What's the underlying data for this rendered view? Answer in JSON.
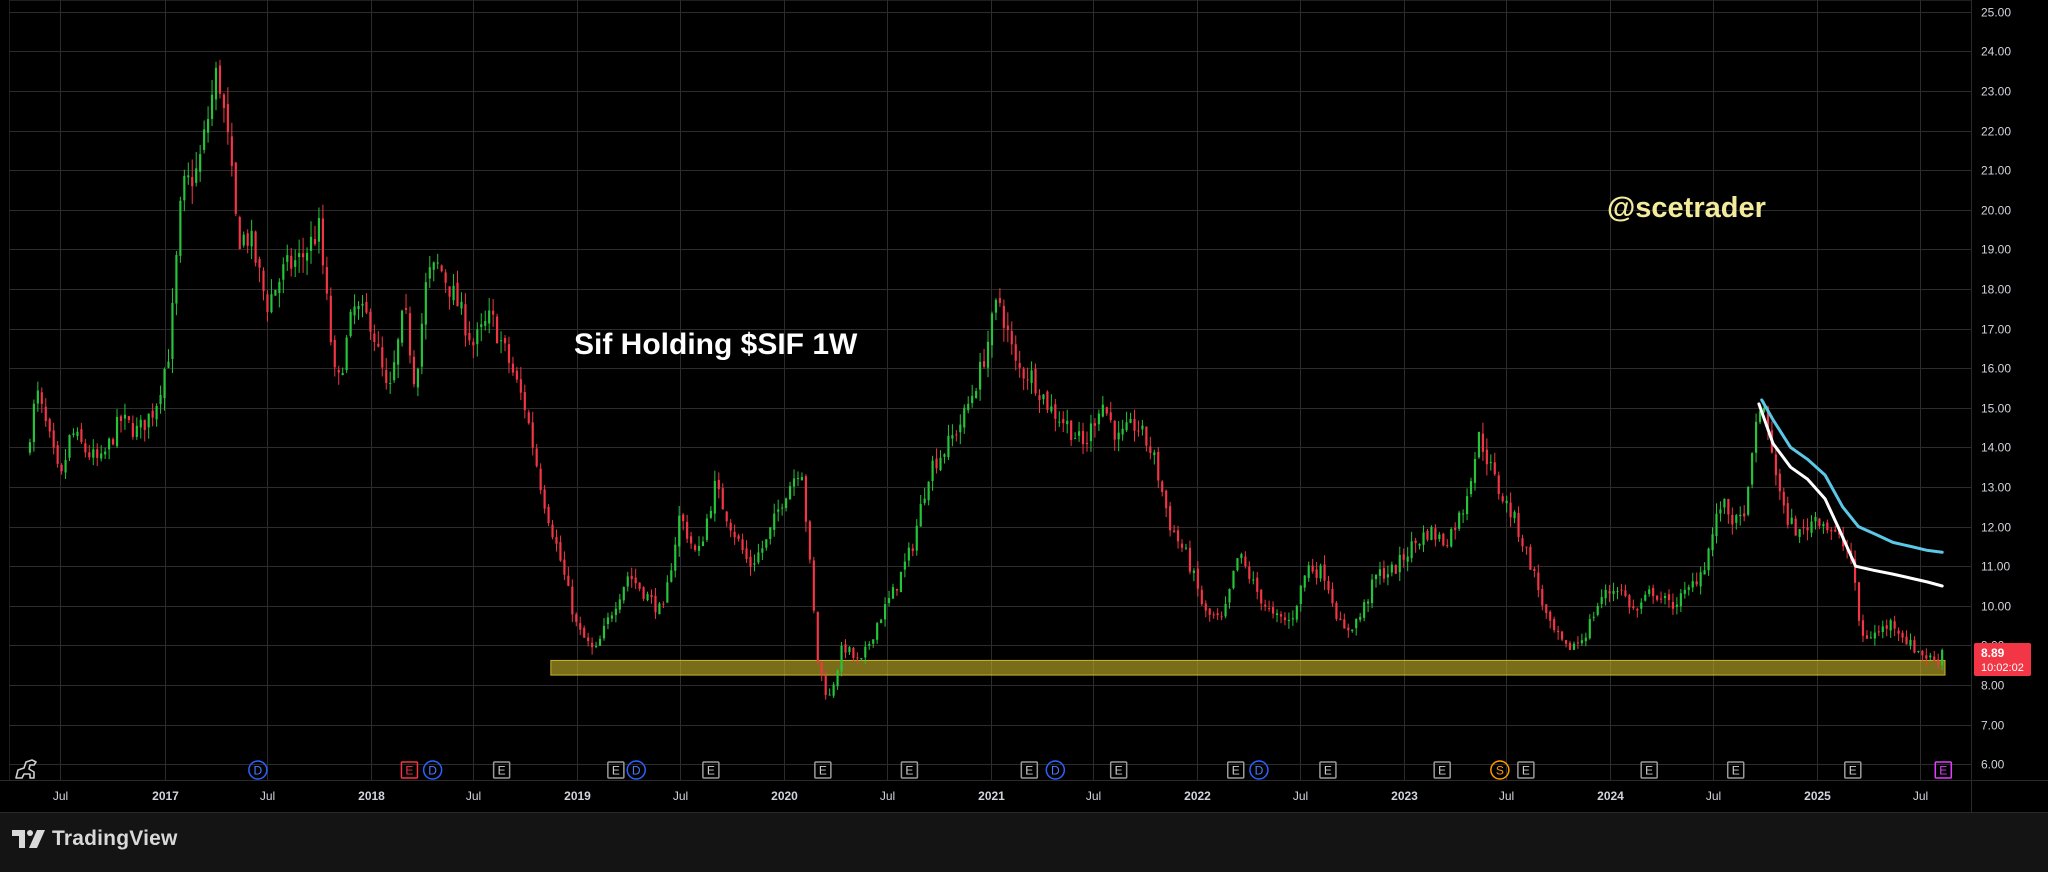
{
  "chart_data": {
    "type": "candlestick",
    "title": "Sif Holding $SIF 1W",
    "watermark": "@scetrader",
    "timeframe": "1W",
    "ylim": [
      5.6,
      25.3
    ],
    "y_ticks": [
      "6.00",
      "7.00",
      "8.00",
      "9.00",
      "10.00",
      "11.00",
      "12.00",
      "13.00",
      "14.00",
      "15.00",
      "16.00",
      "17.00",
      "18.00",
      "19.00",
      "20.00",
      "21.00",
      "22.00",
      "23.00",
      "24.00",
      "25.00"
    ],
    "x_range": [
      "2016-04-01",
      "2025-09-30"
    ],
    "x_ticks": [
      {
        "date": "2016-07-01",
        "label": "Jul"
      },
      {
        "date": "2017-01-01",
        "label": "2017"
      },
      {
        "date": "2017-07-01",
        "label": "Jul"
      },
      {
        "date": "2018-01-01",
        "label": "2018"
      },
      {
        "date": "2018-07-01",
        "label": "Jul"
      },
      {
        "date": "2019-01-01",
        "label": "2019"
      },
      {
        "date": "2019-07-01",
        "label": "Jul"
      },
      {
        "date": "2020-01-01",
        "label": "2020"
      },
      {
        "date": "2020-07-01",
        "label": "Jul"
      },
      {
        "date": "2021-01-01",
        "label": "2021"
      },
      {
        "date": "2021-07-01",
        "label": "Jul"
      },
      {
        "date": "2022-01-01",
        "label": "2022"
      },
      {
        "date": "2022-07-01",
        "label": "Jul"
      },
      {
        "date": "2023-01-01",
        "label": "2023"
      },
      {
        "date": "2023-07-01",
        "label": "Jul"
      },
      {
        "date": "2024-01-01",
        "label": "2024"
      },
      {
        "date": "2024-07-01",
        "label": "Jul"
      },
      {
        "date": "2025-01-01",
        "label": "2025"
      },
      {
        "date": "2025-07-01",
        "label": "Jul"
      }
    ],
    "price_path": [
      [
        "2016-05-01",
        13.8
      ],
      [
        "2016-05-20",
        15.4
      ],
      [
        "2016-06-10",
        14.3
      ],
      [
        "2016-07-01",
        13.1
      ],
      [
        "2016-07-20",
        14.4
      ],
      [
        "2016-08-15",
        13.9
      ],
      [
        "2016-09-10",
        13.6
      ],
      [
        "2016-10-15",
        14.7
      ],
      [
        "2016-11-15",
        14.4
      ],
      [
        "2016-12-15",
        15.0
      ],
      [
        "2017-01-10",
        16.5
      ],
      [
        "2017-02-01",
        20.5
      ],
      [
        "2017-03-01",
        21.0
      ],
      [
        "2017-04-05",
        23.6
      ],
      [
        "2017-04-25",
        21.5
      ],
      [
        "2017-05-10",
        19.3
      ],
      [
        "2017-06-01",
        19.3
      ],
      [
        "2017-07-01",
        17.6
      ],
      [
        "2017-08-01",
        18.5
      ],
      [
        "2017-09-01",
        18.8
      ],
      [
        "2017-10-01",
        19.5
      ],
      [
        "2017-11-01",
        15.4
      ],
      [
        "2017-12-01",
        17.5
      ],
      [
        "2018-01-01",
        17.2
      ],
      [
        "2018-02-01",
        15.2
      ],
      [
        "2018-03-01",
        17.5
      ],
      [
        "2018-03-20",
        15.6
      ],
      [
        "2018-04-10",
        18.3
      ],
      [
        "2018-05-01",
        18.6
      ],
      [
        "2018-06-01",
        17.7
      ],
      [
        "2018-07-01",
        16.6
      ],
      [
        "2018-08-01",
        17.3
      ],
      [
        "2018-09-01",
        16.2
      ],
      [
        "2018-10-01",
        15.0
      ],
      [
        "2018-11-01",
        12.8
      ],
      [
        "2018-12-01",
        11.2
      ],
      [
        "2019-01-01",
        9.4
      ],
      [
        "2019-02-01",
        8.8
      ],
      [
        "2019-03-01",
        9.8
      ],
      [
        "2019-04-01",
        10.8
      ],
      [
        "2019-05-01",
        10.3
      ],
      [
        "2019-06-01",
        9.8
      ],
      [
        "2019-07-01",
        12.3
      ],
      [
        "2019-08-01",
        11.2
      ],
      [
        "2019-09-01",
        13.0
      ],
      [
        "2019-10-01",
        12.0
      ],
      [
        "2019-11-01",
        11.0
      ],
      [
        "2019-12-01",
        11.6
      ],
      [
        "2020-01-01",
        12.8
      ],
      [
        "2020-02-01",
        13.6
      ],
      [
        "2020-03-01",
        8.6
      ],
      [
        "2020-03-20",
        7.6
      ],
      [
        "2020-04-15",
        9.0
      ],
      [
        "2020-05-15",
        8.5
      ],
      [
        "2020-06-15",
        9.6
      ],
      [
        "2020-07-15",
        10.4
      ],
      [
        "2020-08-15",
        11.5
      ],
      [
        "2020-09-15",
        13.5
      ],
      [
        "2020-10-15",
        14.0
      ],
      [
        "2020-11-15",
        14.8
      ],
      [
        "2020-12-15",
        16.0
      ],
      [
        "2021-01-15",
        17.8
      ],
      [
        "2021-02-15",
        16.0
      ],
      [
        "2021-03-15",
        15.8
      ],
      [
        "2021-04-15",
        15.0
      ],
      [
        "2021-05-15",
        14.6
      ],
      [
        "2021-06-15",
        14.0
      ],
      [
        "2021-07-15",
        15.2
      ],
      [
        "2021-08-15",
        14.2
      ],
      [
        "2021-09-15",
        14.6
      ],
      [
        "2021-10-15",
        13.8
      ],
      [
        "2021-11-15",
        12.0
      ],
      [
        "2021-12-15",
        11.2
      ],
      [
        "2022-01-15",
        9.8
      ],
      [
        "2022-02-15",
        9.6
      ],
      [
        "2022-03-15",
        11.3
      ],
      [
        "2022-04-15",
        10.4
      ],
      [
        "2022-05-15",
        9.7
      ],
      [
        "2022-06-15",
        9.6
      ],
      [
        "2022-07-15",
        11.0
      ],
      [
        "2022-08-15",
        10.8
      ],
      [
        "2022-09-15",
        9.3
      ],
      [
        "2022-10-15",
        9.7
      ],
      [
        "2022-11-15",
        10.8
      ],
      [
        "2022-12-15",
        10.9
      ],
      [
        "2023-01-15",
        11.5
      ],
      [
        "2023-02-15",
        11.9
      ],
      [
        "2023-03-15",
        11.6
      ],
      [
        "2023-04-15",
        12.4
      ],
      [
        "2023-05-15",
        14.3
      ],
      [
        "2023-06-15",
        13.0
      ],
      [
        "2023-07-15",
        12.2
      ],
      [
        "2023-08-15",
        11.0
      ],
      [
        "2023-09-15",
        9.5
      ],
      [
        "2023-10-15",
        8.9
      ],
      [
        "2023-11-15",
        9.2
      ],
      [
        "2023-12-15",
        10.2
      ],
      [
        "2024-01-15",
        10.5
      ],
      [
        "2024-02-15",
        9.8
      ],
      [
        "2024-03-15",
        10.4
      ],
      [
        "2024-04-15",
        10.0
      ],
      [
        "2024-05-15",
        10.3
      ],
      [
        "2024-06-15",
        11.0
      ],
      [
        "2024-07-15",
        12.6
      ],
      [
        "2024-08-15",
        12.0
      ],
      [
        "2024-09-01",
        12.8
      ],
      [
        "2024-09-20",
        15.2
      ],
      [
        "2024-10-10",
        14.2
      ],
      [
        "2024-11-01",
        12.4
      ],
      [
        "2024-12-01",
        11.8
      ],
      [
        "2025-01-01",
        12.3
      ],
      [
        "2025-02-01",
        11.8
      ],
      [
        "2025-03-01",
        11.3
      ],
      [
        "2025-03-20",
        9.2
      ],
      [
        "2025-04-15",
        9.3
      ],
      [
        "2025-05-15",
        9.6
      ],
      [
        "2025-06-15",
        9.0
      ],
      [
        "2025-07-15",
        8.7
      ],
      [
        "2025-08-01",
        8.6
      ],
      [
        "2025-08-10",
        8.89
      ]
    ],
    "moving_averages": [
      {
        "color": "#5bc8e8",
        "points": [
          [
            "2024-09-25",
            15.2
          ],
          [
            "2024-10-15",
            14.7
          ],
          [
            "2024-11-15",
            14.0
          ],
          [
            "2024-12-15",
            13.7
          ],
          [
            "2025-01-15",
            13.3
          ],
          [
            "2025-02-15",
            12.5
          ],
          [
            "2025-03-15",
            12.0
          ],
          [
            "2025-04-15",
            11.8
          ],
          [
            "2025-05-15",
            11.6
          ],
          [
            "2025-06-15",
            11.5
          ],
          [
            "2025-07-15",
            11.4
          ],
          [
            "2025-08-10",
            11.35
          ]
        ]
      },
      {
        "color": "#ffffff",
        "points": [
          [
            "2024-09-20",
            15.1
          ],
          [
            "2024-10-15",
            14.1
          ],
          [
            "2024-11-15",
            13.5
          ],
          [
            "2024-12-15",
            13.2
          ],
          [
            "2025-01-15",
            12.7
          ],
          [
            "2025-02-10",
            11.9
          ],
          [
            "2025-03-10",
            11.0
          ],
          [
            "2025-04-10",
            10.9
          ],
          [
            "2025-05-15",
            10.8
          ],
          [
            "2025-06-15",
            10.7
          ],
          [
            "2025-07-15",
            10.6
          ],
          [
            "2025-08-10",
            10.5
          ]
        ]
      }
    ],
    "support_zone": {
      "from_date": "2018-11-15",
      "to_date": "2025-08-15",
      "low": 8.25,
      "high": 8.62,
      "color": "#c9b62a"
    },
    "current_price": {
      "label": "8.89",
      "countdown": "10:02:02",
      "color": "#f23645"
    },
    "colors": {
      "up": "#26c43a",
      "down": "#f23645",
      "background": "#000000",
      "grid": "#2c2c2c",
      "text": "#d1d4dc",
      "title": "#ffffff",
      "watermark": "#f3ea9c"
    },
    "events": [
      {
        "date": "2017-06-15",
        "label": "D",
        "kind": "dividend"
      },
      {
        "date": "2018-03-10",
        "label": "E",
        "kind": "earnings-red"
      },
      {
        "date": "2018-04-20",
        "label": "D",
        "kind": "dividend"
      },
      {
        "date": "2018-08-20",
        "label": "E",
        "kind": "earnings"
      },
      {
        "date": "2019-03-10",
        "label": "E",
        "kind": "earnings"
      },
      {
        "date": "2019-04-15",
        "label": "D",
        "kind": "dividend"
      },
      {
        "date": "2019-08-25",
        "label": "E",
        "kind": "earnings"
      },
      {
        "date": "2020-03-10",
        "label": "E",
        "kind": "earnings"
      },
      {
        "date": "2020-08-10",
        "label": "E",
        "kind": "earnings"
      },
      {
        "date": "2021-03-10",
        "label": "E",
        "kind": "earnings"
      },
      {
        "date": "2021-04-25",
        "label": "D",
        "kind": "dividend"
      },
      {
        "date": "2021-08-15",
        "label": "E",
        "kind": "earnings"
      },
      {
        "date": "2022-03-10",
        "label": "E",
        "kind": "earnings"
      },
      {
        "date": "2022-04-20",
        "label": "D",
        "kind": "dividend"
      },
      {
        "date": "2022-08-20",
        "label": "E",
        "kind": "earnings"
      },
      {
        "date": "2023-03-10",
        "label": "E",
        "kind": "earnings"
      },
      {
        "date": "2023-06-20",
        "label": "S",
        "kind": "split"
      },
      {
        "date": "2023-08-05",
        "label": "E",
        "kind": "earnings"
      },
      {
        "date": "2024-03-10",
        "label": "E",
        "kind": "earnings"
      },
      {
        "date": "2024-08-10",
        "label": "E",
        "kind": "earnings"
      },
      {
        "date": "2025-03-05",
        "label": "E",
        "kind": "earnings"
      },
      {
        "date": "2025-08-12",
        "label": "E",
        "kind": "earnings-upcoming"
      }
    ]
  },
  "footer": {
    "brand": "TradingView"
  }
}
